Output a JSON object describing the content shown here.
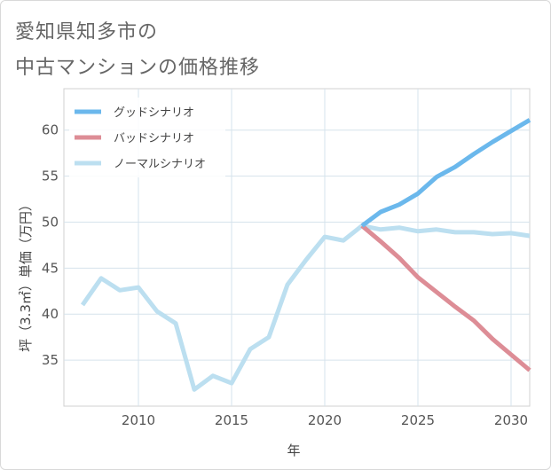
{
  "title_lines": [
    "愛知県知多市の",
    "中古マンションの価格推移"
  ],
  "chart_data": {
    "type": "line",
    "xlabel": "年",
    "ylabel": "坪（3.3㎡）単価（万円）",
    "xlim": [
      2006,
      2031
    ],
    "ylim": [
      30,
      64.5
    ],
    "xticks": [
      2010,
      2015,
      2020,
      2025,
      2030
    ],
    "yticks": [
      35,
      40,
      45,
      50,
      55,
      60
    ],
    "grid": true,
    "legend_position": "top-left",
    "series": [
      {
        "name": "グッドシナリオ",
        "color": "#6bb8ec",
        "x": [
          2022,
          2023,
          2024,
          2025,
          2026,
          2027,
          2028,
          2029,
          2030,
          2031
        ],
        "y": [
          49.6,
          51.1,
          51.9,
          53.1,
          54.9,
          56.0,
          57.4,
          58.7,
          59.9,
          61.1
        ]
      },
      {
        "name": "バッドシナリオ",
        "color": "#dd8d96",
        "x": [
          2022,
          2023,
          2024,
          2025,
          2026,
          2027,
          2028,
          2029,
          2030,
          2031
        ],
        "y": [
          49.6,
          47.9,
          46.1,
          44.0,
          42.4,
          40.8,
          39.3,
          37.3,
          35.6,
          33.9
        ]
      },
      {
        "name": "ノーマルシナリオ",
        "color": "#bcdff0",
        "x": [
          2007,
          2008,
          2009,
          2010,
          2011,
          2012,
          2013,
          2014,
          2015,
          2016,
          2017,
          2018,
          2019,
          2020,
          2021,
          2022,
          2023,
          2024,
          2025,
          2026,
          2027,
          2028,
          2029,
          2030,
          2031
        ],
        "y": [
          41.0,
          43.9,
          42.6,
          42.9,
          40.3,
          39.0,
          31.8,
          33.3,
          32.5,
          36.2,
          37.5,
          43.2,
          45.9,
          48.4,
          48.0,
          49.6,
          49.2,
          49.4,
          49.0,
          49.2,
          48.9,
          48.9,
          48.7,
          48.8,
          48.5
        ]
      }
    ]
  }
}
